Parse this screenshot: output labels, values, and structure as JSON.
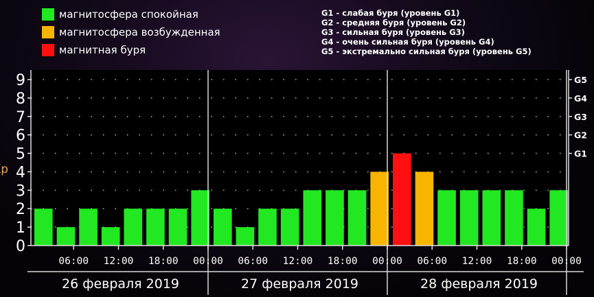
{
  "legend": {
    "items": [
      {
        "label": "магнитосфера спокойная",
        "color": "#22e822"
      },
      {
        "label": "магнитосфера возбужденная",
        "color": "#f7b500"
      },
      {
        "label": "магнитная буря",
        "color": "#ff1010"
      }
    ],
    "storm_levels": [
      "G1 - слабая буря (уровень G1)",
      "G2 - средняя буря (уровень G2)",
      "G3 - сильная буря (уровень G3)",
      "G4 - очень сильная буря (уровень G4)",
      "G5 - экстремально сильная буря (уровень G5)"
    ]
  },
  "chart_data": {
    "type": "bar",
    "ylabel": "Kp",
    "ylim": [
      0,
      9
    ],
    "yticks": [
      "0",
      "1",
      "2",
      "3",
      "4",
      "5",
      "6",
      "7",
      "8",
      "9"
    ],
    "right_ticks": [
      {
        "label": "G1",
        "value": 5
      },
      {
        "label": "G2",
        "value": 6
      },
      {
        "label": "G3",
        "value": 7
      },
      {
        "label": "G4",
        "value": 8
      },
      {
        "label": "G5",
        "value": 9
      }
    ],
    "values": [
      2,
      1,
      2,
      1,
      2,
      2,
      2,
      3,
      2,
      1,
      2,
      2,
      3,
      3,
      3,
      4,
      5,
      4,
      3,
      3,
      3,
      3,
      2,
      3
    ],
    "colors": [
      "#22e822",
      "#22e822",
      "#22e822",
      "#22e822",
      "#22e822",
      "#22e822",
      "#22e822",
      "#22e822",
      "#22e822",
      "#22e822",
      "#22e822",
      "#22e822",
      "#22e822",
      "#22e822",
      "#22e822",
      "#f7b500",
      "#ff1010",
      "#f7b500",
      "#22e822",
      "#22e822",
      "#22e822",
      "#22e822",
      "#22e822",
      "#22e822"
    ],
    "time_ticks": [
      "06:00",
      "12:00",
      "18:00",
      "00:00",
      "06:00",
      "12:00",
      "18:00",
      "00:00",
      "06:00",
      "12:00",
      "18:00",
      "00:00"
    ],
    "days": [
      "26 февраля 2019",
      "27 февраля 2019",
      "28 февраля 2019"
    ],
    "grid": "dotted"
  }
}
